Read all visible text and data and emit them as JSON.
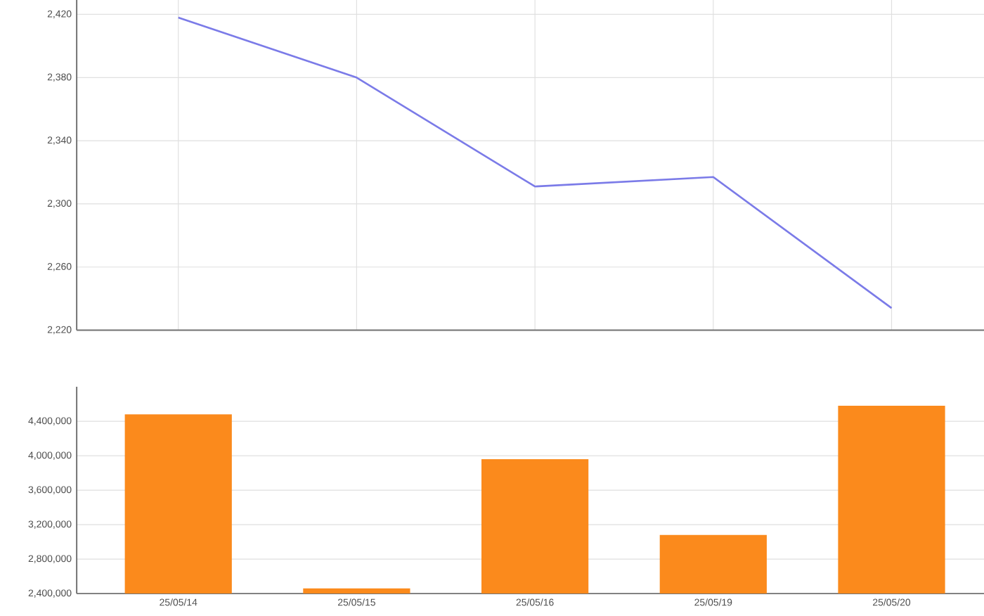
{
  "chart_data": [
    {
      "type": "line",
      "categories": [
        null,
        null,
        null,
        null,
        null
      ],
      "series": [
        {
          "color": "#7b7be8",
          "values": [
            2418,
            2380,
            2311,
            2317,
            2234
          ]
        }
      ],
      "ylim": [
        2220,
        2440
      ],
      "yticks": [
        {
          "value": 2220,
          "label": "2,220"
        },
        {
          "value": 2260,
          "label": "2,260"
        },
        {
          "value": 2300,
          "label": "2,300"
        },
        {
          "value": 2340,
          "label": "2,340"
        },
        {
          "value": 2380,
          "label": "2,380"
        },
        {
          "value": 2420,
          "label": "2,420"
        }
      ],
      "grid": true,
      "tick_labels": "y"
    },
    {
      "type": "bar",
      "categories": [
        "25/05/14",
        "25/05/15",
        "25/05/16",
        "25/05/19",
        "25/05/20"
      ],
      "series": [
        {
          "color": "#fb8a1c",
          "values": [
            4480000,
            2460000,
            3960000,
            3080000,
            4580000
          ]
        }
      ],
      "ylim": [
        2400000,
        4800000
      ],
      "yticks": [
        {
          "value": 2400000,
          "label": "2,400,000"
        },
        {
          "value": 2800000,
          "label": "2,800,000"
        },
        {
          "value": 3200000,
          "label": "3,200,000"
        },
        {
          "value": 3600000,
          "label": "3,600,000"
        },
        {
          "value": 4000000,
          "label": "4,000,000"
        },
        {
          "value": 4400000,
          "label": "4,400,000"
        }
      ],
      "grid": "y"
    }
  ]
}
